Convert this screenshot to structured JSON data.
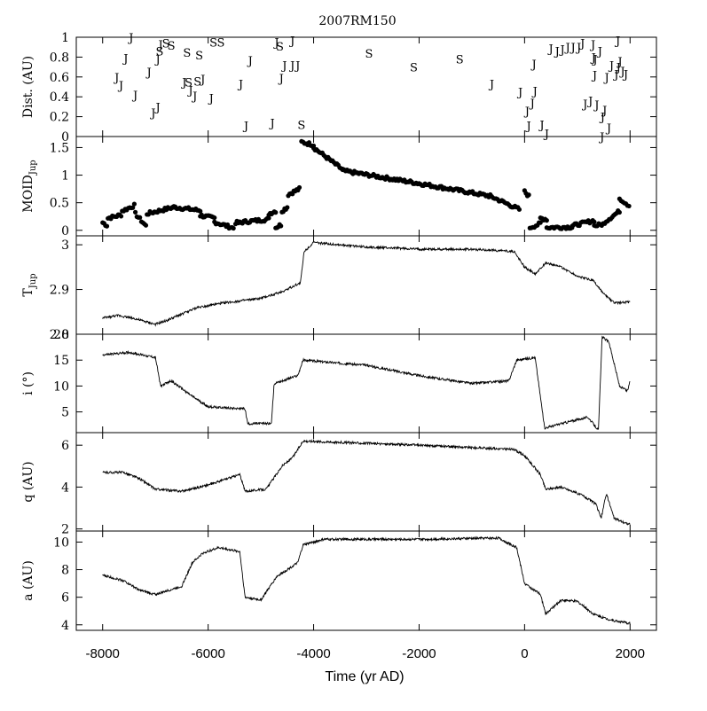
{
  "title": "2007RM150",
  "x_axis": {
    "label": "Time (yr AD)",
    "ticks": [
      -8000,
      -6000,
      -4000,
      -2000,
      0,
      2000
    ],
    "range": [
      -8500,
      2500
    ]
  },
  "chart_data": [
    {
      "id": "dist",
      "type": "scatter",
      "ylabel": "Dist. (AU)",
      "ylim": [
        0,
        1
      ],
      "yticks": [
        0,
        0.2,
        0.4,
        0.6,
        0.8,
        1
      ],
      "marker": "letters J and S (planet of close encounter)",
      "points": [
        {
          "x": -7460,
          "y": 1.0,
          "m": "J"
        },
        {
          "x": -7560,
          "y": 0.79,
          "m": "J"
        },
        {
          "x": -7730,
          "y": 0.6,
          "m": "J"
        },
        {
          "x": -7650,
          "y": 0.52,
          "m": "J"
        },
        {
          "x": -7380,
          "y": 0.42,
          "m": "J"
        },
        {
          "x": -7120,
          "y": 0.65,
          "m": "J"
        },
        {
          "x": -7040,
          "y": 0.24,
          "m": "J"
        },
        {
          "x": -6950,
          "y": 0.3,
          "m": "J"
        },
        {
          "x": -6950,
          "y": 0.78,
          "m": "J"
        },
        {
          "x": -6900,
          "y": 0.93,
          "m": "J"
        },
        {
          "x": -6920,
          "y": 0.86,
          "m": "S"
        },
        {
          "x": -6800,
          "y": 0.94,
          "m": "S"
        },
        {
          "x": -6700,
          "y": 0.92,
          "m": "S"
        },
        {
          "x": -6400,
          "y": 0.85,
          "m": "S"
        },
        {
          "x": -6170,
          "y": 0.82,
          "m": "S"
        },
        {
          "x": -6200,
          "y": 0.56,
          "m": "S"
        },
        {
          "x": -6370,
          "y": 0.55,
          "m": "S"
        },
        {
          "x": -6450,
          "y": 0.55,
          "m": "J"
        },
        {
          "x": -6330,
          "y": 0.47,
          "m": "J"
        },
        {
          "x": -6250,
          "y": 0.41,
          "m": "J"
        },
        {
          "x": -6100,
          "y": 0.58,
          "m": "J"
        },
        {
          "x": -5940,
          "y": 0.39,
          "m": "J"
        },
        {
          "x": -5900,
          "y": 0.95,
          "m": "S"
        },
        {
          "x": -5760,
          "y": 0.95,
          "m": "S"
        },
        {
          "x": -5380,
          "y": 0.53,
          "m": "J"
        },
        {
          "x": -5200,
          "y": 0.77,
          "m": "J"
        },
        {
          "x": -5280,
          "y": 0.11,
          "m": "J"
        },
        {
          "x": -4780,
          "y": 0.14,
          "m": "J"
        },
        {
          "x": -4700,
          "y": 0.95,
          "m": "J"
        },
        {
          "x": -4640,
          "y": 0.91,
          "m": "S"
        },
        {
          "x": -4550,
          "y": 0.72,
          "m": "J"
        },
        {
          "x": -4610,
          "y": 0.59,
          "m": "J"
        },
        {
          "x": -4400,
          "y": 0.72,
          "m": "J"
        },
        {
          "x": -4300,
          "y": 0.72,
          "m": "J"
        },
        {
          "x": -4400,
          "y": 0.97,
          "m": "J"
        },
        {
          "x": -4230,
          "y": 0.12,
          "m": "S"
        },
        {
          "x": -2950,
          "y": 0.84,
          "m": "S"
        },
        {
          "x": -2100,
          "y": 0.7,
          "m": "S"
        },
        {
          "x": -1230,
          "y": 0.78,
          "m": "S"
        },
        {
          "x": -620,
          "y": 0.53,
          "m": "J"
        },
        {
          "x": -80,
          "y": 0.45,
          "m": "J"
        },
        {
          "x": 50,
          "y": 0.26,
          "m": "J"
        },
        {
          "x": 80,
          "y": 0.11,
          "m": "J"
        },
        {
          "x": 150,
          "y": 0.34,
          "m": "J"
        },
        {
          "x": 180,
          "y": 0.73,
          "m": "J"
        },
        {
          "x": 200,
          "y": 0.46,
          "m": "J"
        },
        {
          "x": 330,
          "y": 0.12,
          "m": "J"
        },
        {
          "x": 420,
          "y": 0.03,
          "m": "J"
        },
        {
          "x": 500,
          "y": 0.89,
          "m": "J"
        },
        {
          "x": 620,
          "y": 0.86,
          "m": "J"
        },
        {
          "x": 720,
          "y": 0.88,
          "m": "J"
        },
        {
          "x": 820,
          "y": 0.9,
          "m": "J"
        },
        {
          "x": 920,
          "y": 0.9,
          "m": "J"
        },
        {
          "x": 1030,
          "y": 0.9,
          "m": "J"
        },
        {
          "x": 1100,
          "y": 0.94,
          "m": "J"
        },
        {
          "x": 1150,
          "y": 0.33,
          "m": "J"
        },
        {
          "x": 1250,
          "y": 0.36,
          "m": "J"
        },
        {
          "x": 1300,
          "y": 0.93,
          "m": "J"
        },
        {
          "x": 1310,
          "y": 0.8,
          "m": "J"
        },
        {
          "x": 1340,
          "y": 0.78,
          "m": "J"
        },
        {
          "x": 1370,
          "y": 0.32,
          "m": "J"
        },
        {
          "x": 1330,
          "y": 0.62,
          "m": "J"
        },
        {
          "x": 1430,
          "y": 0.86,
          "m": "J"
        },
        {
          "x": 1480,
          "y": 0.2,
          "m": "J"
        },
        {
          "x": 1520,
          "y": 0.27,
          "m": "J"
        },
        {
          "x": 1560,
          "y": 0.6,
          "m": "J"
        },
        {
          "x": 1600,
          "y": 0.09,
          "m": "J"
        },
        {
          "x": 1470,
          "y": 0.0,
          "m": "J"
        },
        {
          "x": 1650,
          "y": 0.72,
          "m": "J"
        },
        {
          "x": 1740,
          "y": 0.63,
          "m": "J"
        },
        {
          "x": 1770,
          "y": 0.97,
          "m": "J"
        },
        {
          "x": 1780,
          "y": 0.7,
          "m": "J"
        },
        {
          "x": 1810,
          "y": 0.76,
          "m": "J"
        },
        {
          "x": 1860,
          "y": 0.66,
          "m": "J"
        },
        {
          "x": 1920,
          "y": 0.63,
          "m": "J"
        }
      ]
    },
    {
      "id": "moid",
      "type": "scatter",
      "ylabel": "MOID",
      "ylabel_sub": "Jup",
      "ylim": [
        -0.1,
        1.7
      ],
      "yticks": [
        0,
        0.5,
        1,
        1.5
      ],
      "marker": "dot",
      "segments": [
        {
          "xs": -8000,
          "xe": -7920,
          "ys": 0.14,
          "ye": 0.09
        },
        {
          "xs": -7900,
          "xe": -7650,
          "ys": 0.22,
          "ye": 0.28
        },
        {
          "xs": -7630,
          "xe": -7400,
          "ys": 0.35,
          "ye": 0.45
        },
        {
          "xs": -7380,
          "xe": -7180,
          "ys": 0.3,
          "ye": 0.08
        },
        {
          "xs": -7160,
          "xe": -6650,
          "ys": 0.3,
          "ye": 0.42
        },
        {
          "xs": -6650,
          "xe": -6150,
          "ys": 0.42,
          "ye": 0.36
        },
        {
          "xs": -6150,
          "xe": -5880,
          "ys": 0.27,
          "ye": 0.22
        },
        {
          "xs": -5880,
          "xe": -5520,
          "ys": 0.15,
          "ye": 0.04
        },
        {
          "xs": -5480,
          "xe": -5350,
          "ys": 0.14,
          "ye": 0.13
        },
        {
          "xs": -5350,
          "xe": -4850,
          "ys": 0.15,
          "ye": 0.2
        },
        {
          "xs": -4850,
          "xe": -4720,
          "ys": 0.3,
          "ye": 0.35
        },
        {
          "xs": -4720,
          "xe": -4620,
          "ys": 0.05,
          "ye": 0.1
        },
        {
          "xs": -4600,
          "xe": -4500,
          "ys": 0.35,
          "ye": 0.42
        },
        {
          "xs": -4480,
          "xe": -4270,
          "ys": 0.65,
          "ye": 0.75
        },
        {
          "xs": -4230,
          "xe": -4000,
          "ys": 1.6,
          "ye": 1.55
        },
        {
          "xs": -4000,
          "xe": -3450,
          "ys": 1.5,
          "ye": 1.1
        },
        {
          "xs": -3450,
          "xe": -2000,
          "ys": 1.08,
          "ye": 0.85
        },
        {
          "xs": -2000,
          "xe": -650,
          "ys": 0.85,
          "ye": 0.62
        },
        {
          "xs": -650,
          "xe": -100,
          "ys": 0.62,
          "ye": 0.38
        },
        {
          "xs": 0,
          "xe": 80,
          "ys": 0.7,
          "ye": 0.62
        },
        {
          "xs": 100,
          "xe": 300,
          "ys": 0.05,
          "ye": 0.12
        },
        {
          "xs": 300,
          "xe": 420,
          "ys": 0.22,
          "ye": 0.2
        },
        {
          "xs": 420,
          "xe": 900,
          "ys": 0.05,
          "ye": 0.06
        },
        {
          "xs": 900,
          "xe": 1320,
          "ys": 0.08,
          "ye": 0.18
        },
        {
          "xs": 1320,
          "xe": 1520,
          "ys": 0.08,
          "ye": 0.12
        },
        {
          "xs": 1520,
          "xe": 1800,
          "ys": 0.15,
          "ye": 0.35
        },
        {
          "xs": 1800,
          "xe": 1980,
          "ys": 0.58,
          "ye": 0.45
        }
      ]
    },
    {
      "id": "tjup",
      "type": "line",
      "ylabel": "T",
      "ylabel_sub": "Jup",
      "ylim": [
        2.8,
        3.02
      ],
      "yticks": [
        2.8,
        2.9,
        3
      ],
      "keypoints": [
        [
          -8000,
          2.836
        ],
        [
          -7700,
          2.842
        ],
        [
          -7400,
          2.835
        ],
        [
          -7000,
          2.822
        ],
        [
          -6800,
          2.83
        ],
        [
          -6200,
          2.86
        ],
        [
          -5700,
          2.87
        ],
        [
          -5000,
          2.88
        ],
        [
          -4600,
          2.895
        ],
        [
          -4250,
          2.915
        ],
        [
          -4180,
          2.985
        ],
        [
          -4000,
          3.005
        ],
        [
          -3000,
          2.995
        ],
        [
          -2000,
          2.99
        ],
        [
          -1000,
          2.99
        ],
        [
          -200,
          2.985
        ],
        [
          0,
          2.95
        ],
        [
          200,
          2.935
        ],
        [
          400,
          2.96
        ],
        [
          700,
          2.95
        ],
        [
          1000,
          2.93
        ],
        [
          1300,
          2.92
        ],
        [
          1500,
          2.89
        ],
        [
          1700,
          2.87
        ],
        [
          2000,
          2.872
        ]
      ]
    },
    {
      "id": "incl",
      "type": "line",
      "ylabel": "i (°)",
      "ylim": [
        1,
        20
      ],
      "yticks": [
        5,
        10,
        15,
        20
      ],
      "keypoints": [
        [
          -8000,
          16.0
        ],
        [
          -7500,
          16.5
        ],
        [
          -7000,
          15.5
        ],
        [
          -6900,
          10.0
        ],
        [
          -6700,
          11.0
        ],
        [
          -6300,
          8.0
        ],
        [
          -6000,
          6.0
        ],
        [
          -5300,
          5.6
        ],
        [
          -5250,
          2.7
        ],
        [
          -4800,
          2.8
        ],
        [
          -4750,
          10.5
        ],
        [
          -4300,
          12.0
        ],
        [
          -4200,
          15.0
        ],
        [
          -3000,
          14.0
        ],
        [
          -2000,
          12.0
        ],
        [
          -1000,
          10.5
        ],
        [
          -300,
          11.0
        ],
        [
          -150,
          15.0
        ],
        [
          200,
          15.5
        ],
        [
          380,
          1.9
        ],
        [
          800,
          3.0
        ],
        [
          1200,
          4.0
        ],
        [
          1400,
          1.5
        ],
        [
          1470,
          19.5
        ],
        [
          1600,
          18.5
        ],
        [
          1800,
          10.0
        ],
        [
          1950,
          9.0
        ],
        [
          2000,
          11.0
        ]
      ]
    },
    {
      "id": "q",
      "type": "line",
      "ylabel": "q (AU)",
      "ylim": [
        1.9,
        6.6
      ],
      "yticks": [
        2,
        4,
        6
      ],
      "keypoints": [
        [
          -8000,
          4.7
        ],
        [
          -7600,
          4.7
        ],
        [
          -7300,
          4.4
        ],
        [
          -7000,
          3.9
        ],
        [
          -6500,
          3.8
        ],
        [
          -6000,
          4.1
        ],
        [
          -5400,
          4.6
        ],
        [
          -5300,
          3.8
        ],
        [
          -4900,
          3.9
        ],
        [
          -4600,
          5.0
        ],
        [
          -4400,
          5.4
        ],
        [
          -4200,
          6.2
        ],
        [
          -2000,
          6.0
        ],
        [
          -200,
          5.8
        ],
        [
          0,
          5.5
        ],
        [
          300,
          4.6
        ],
        [
          400,
          3.9
        ],
        [
          700,
          4.0
        ],
        [
          1100,
          3.6
        ],
        [
          1350,
          3.2
        ],
        [
          1450,
          2.5
        ],
        [
          1550,
          3.7
        ],
        [
          1700,
          2.5
        ],
        [
          2000,
          2.2
        ]
      ]
    },
    {
      "id": "a",
      "type": "line",
      "ylabel": "a (AU)",
      "ylim": [
        3.6,
        10.8
      ],
      "yticks": [
        4,
        6,
        8,
        10
      ],
      "keypoints": [
        [
          -8000,
          7.6
        ],
        [
          -7600,
          7.2
        ],
        [
          -7300,
          6.5
        ],
        [
          -7000,
          6.2
        ],
        [
          -6500,
          6.8
        ],
        [
          -6300,
          8.5
        ],
        [
          -6100,
          9.2
        ],
        [
          -5800,
          9.6
        ],
        [
          -5400,
          9.3
        ],
        [
          -5300,
          6.0
        ],
        [
          -5000,
          5.8
        ],
        [
          -4700,
          7.5
        ],
        [
          -4300,
          8.5
        ],
        [
          -4200,
          9.8
        ],
        [
          -3800,
          10.2
        ],
        [
          -2000,
          10.2
        ],
        [
          -500,
          10.3
        ],
        [
          -150,
          9.6
        ],
        [
          0,
          7.0
        ],
        [
          300,
          6.2
        ],
        [
          400,
          4.8
        ],
        [
          700,
          5.8
        ],
        [
          1000,
          5.7
        ],
        [
          1300,
          4.8
        ],
        [
          1500,
          4.5
        ],
        [
          1700,
          4.3
        ],
        [
          2000,
          4.1
        ]
      ]
    }
  ]
}
